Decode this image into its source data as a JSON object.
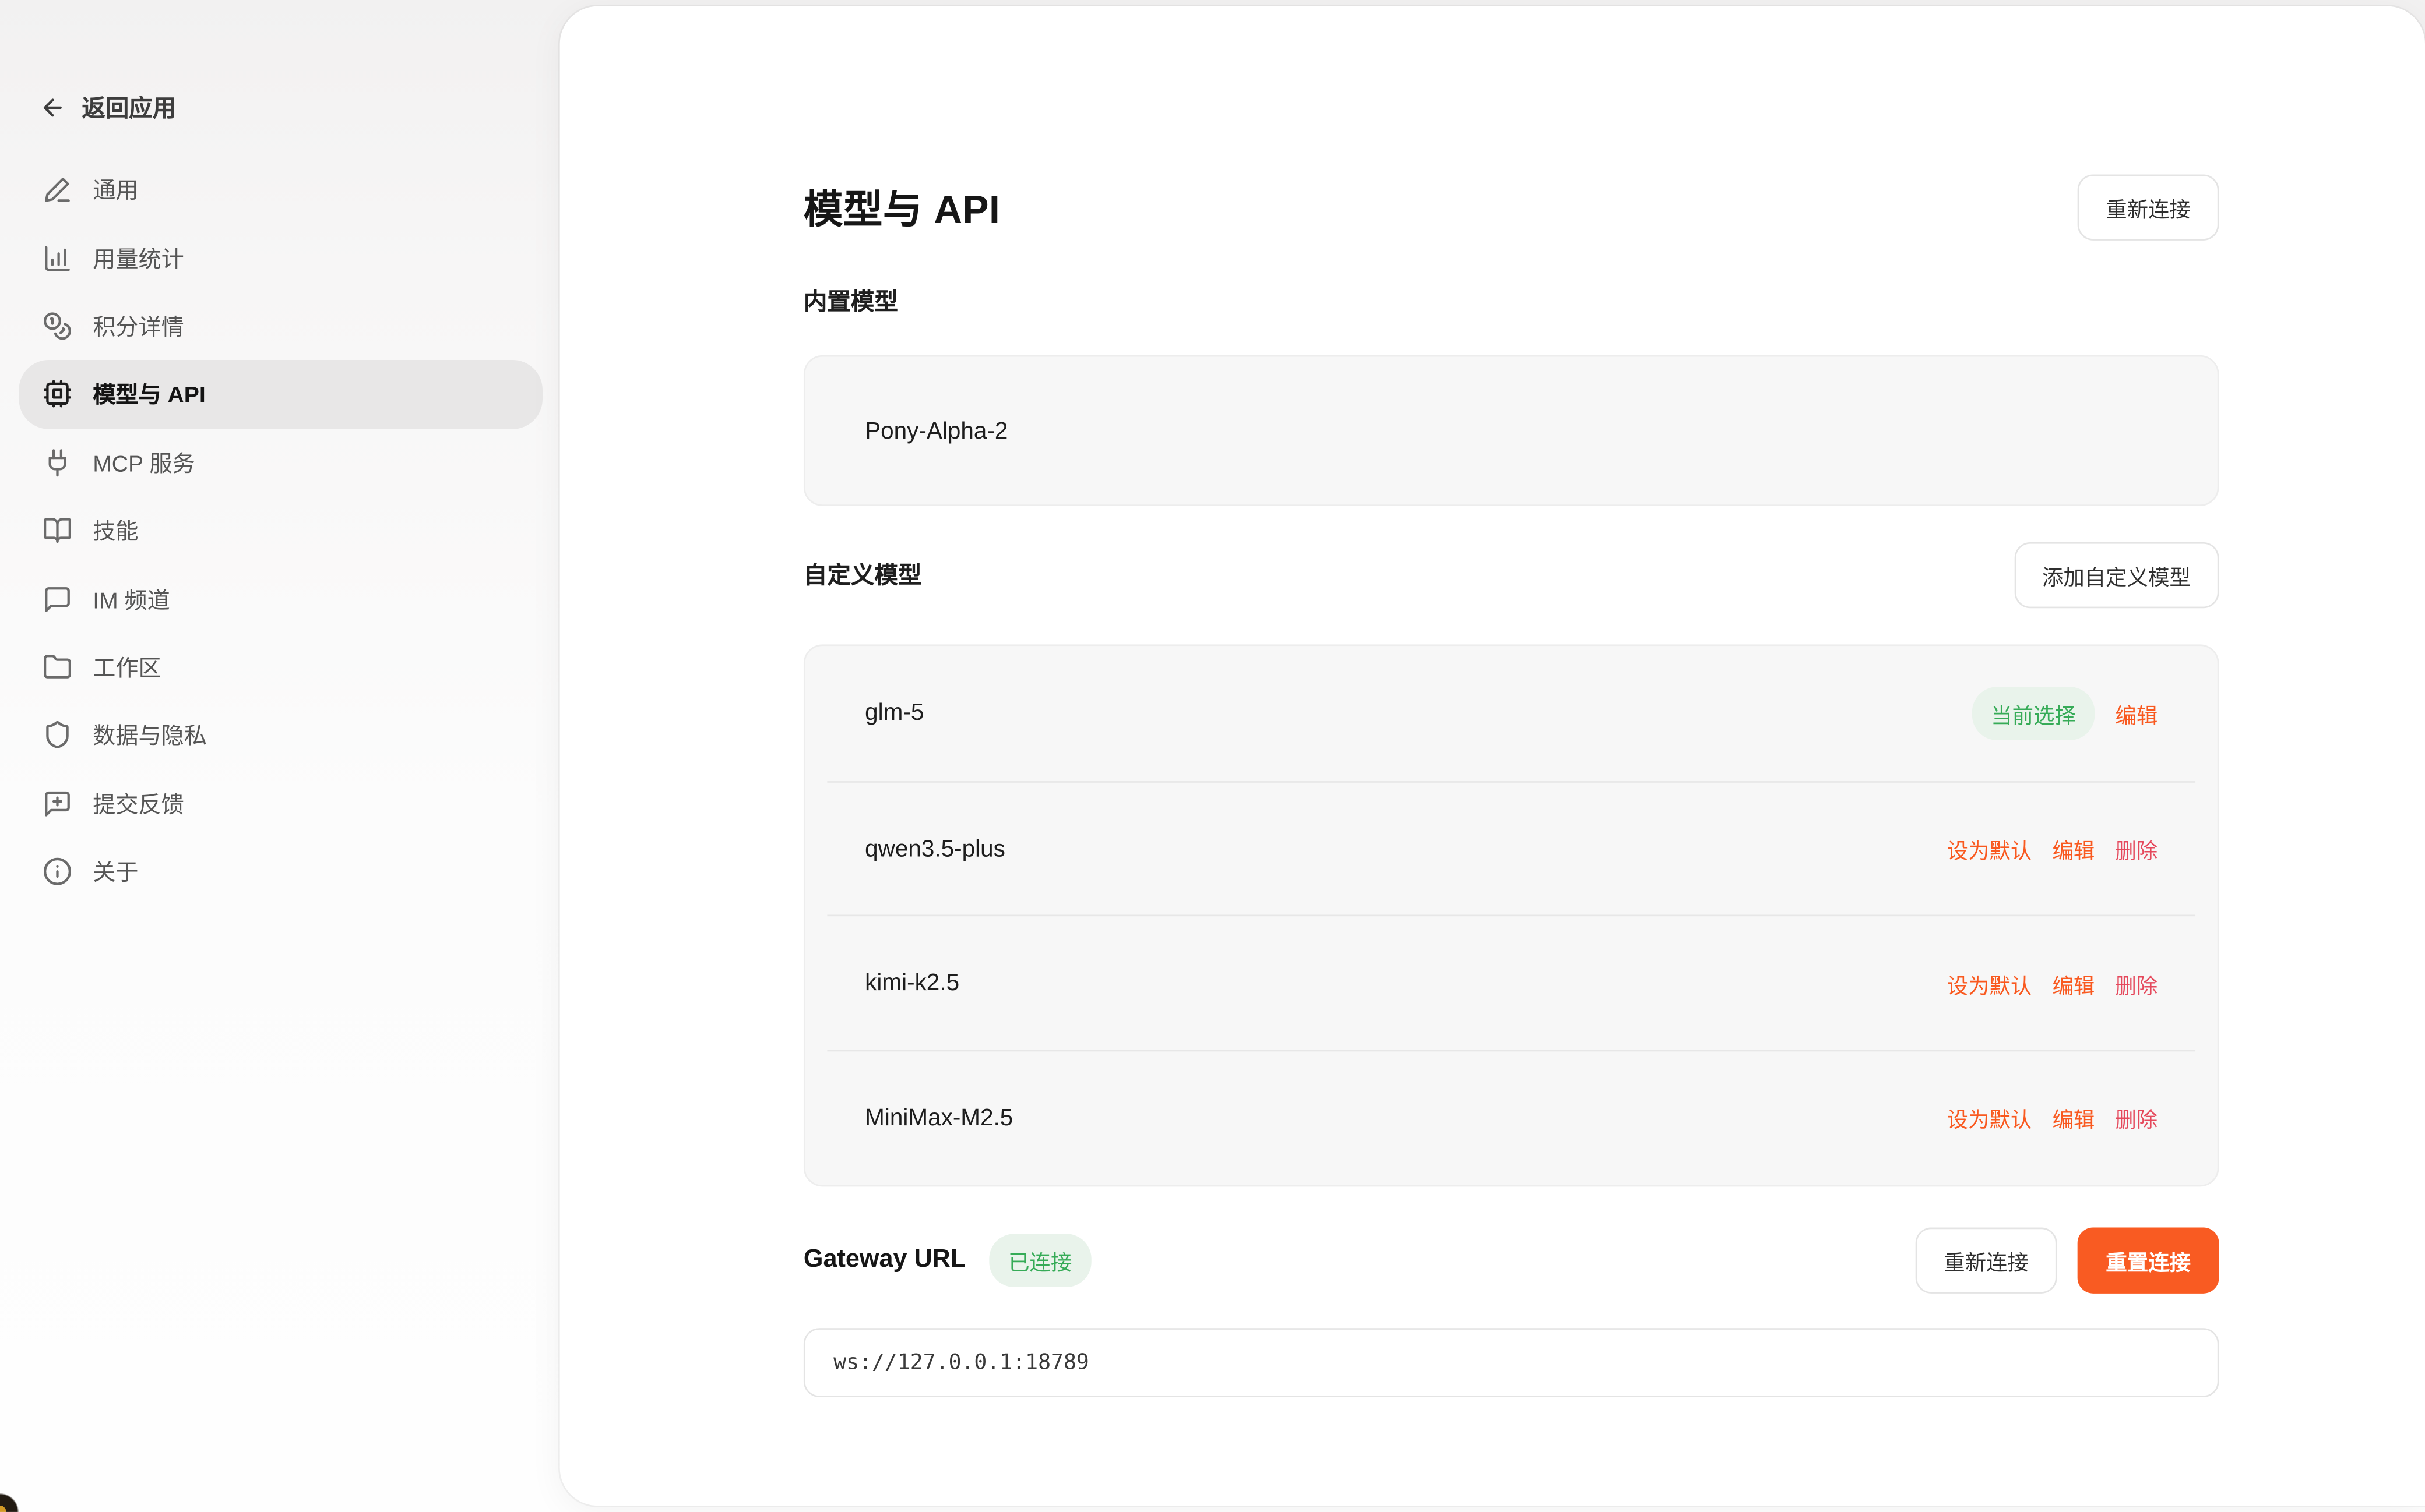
{
  "sidebar": {
    "back_label": "返回应用",
    "items": [
      {
        "id": "general",
        "label": "通用",
        "icon": "pencil-icon"
      },
      {
        "id": "usage-stats",
        "label": "用量统计",
        "icon": "bar-chart-icon"
      },
      {
        "id": "credits",
        "label": "积分详情",
        "icon": "coins-icon"
      },
      {
        "id": "models-api",
        "label": "模型与 API",
        "icon": "cpu-icon",
        "selected": true
      },
      {
        "id": "mcp-services",
        "label": "MCP 服务",
        "icon": "plug-icon"
      },
      {
        "id": "skills",
        "label": "技能",
        "icon": "book-open-icon"
      },
      {
        "id": "im-channels",
        "label": "IM 频道",
        "icon": "message-square-icon"
      },
      {
        "id": "workspace",
        "label": "工作区",
        "icon": "folder-icon"
      },
      {
        "id": "data-privacy",
        "label": "数据与隐私",
        "icon": "shield-icon"
      },
      {
        "id": "feedback",
        "label": "提交反馈",
        "icon": "message-square-plus-icon"
      },
      {
        "id": "about",
        "label": "关于",
        "icon": "info-icon"
      }
    ]
  },
  "main": {
    "title": "模型与 API",
    "reconnect_button": "重新连接",
    "builtin_section": {
      "title": "内置模型",
      "model": "Pony-Alpha-2"
    },
    "custom_section": {
      "title": "自定义模型",
      "add_button": "添加自定义模型",
      "models": [
        {
          "name": "glm-5",
          "badge": "当前选择",
          "actions": [
            {
              "label": "编辑",
              "type": "edit"
            }
          ]
        },
        {
          "name": "qwen3.5-plus",
          "actions": [
            {
              "label": "设为默认",
              "type": "default"
            },
            {
              "label": "编辑",
              "type": "edit"
            },
            {
              "label": "删除",
              "type": "delete"
            }
          ]
        },
        {
          "name": "kimi-k2.5",
          "actions": [
            {
              "label": "设为默认",
              "type": "default"
            },
            {
              "label": "编辑",
              "type": "edit"
            },
            {
              "label": "删除",
              "type": "delete"
            }
          ]
        },
        {
          "name": "MiniMax-M2.5",
          "actions": [
            {
              "label": "设为默认",
              "type": "default"
            },
            {
              "label": "编辑",
              "type": "edit"
            },
            {
              "label": "删除",
              "type": "delete"
            }
          ]
        }
      ]
    },
    "gateway": {
      "label": "Gateway URL",
      "status_badge": "已连接",
      "reconnect_button": "重新连接",
      "reset_button": "重置连接",
      "url": "ws://127.0.0.1:18789"
    }
  },
  "colors": {
    "accent_orange": "#f95b22",
    "link_orange": "#f9591f",
    "delete_red": "#e5495c",
    "success_green": "#36ab57",
    "success_green_bg": "#e9f3eb",
    "selected_pill_gray": "#e8e7e7",
    "card_gray": "#f7f7f7"
  }
}
